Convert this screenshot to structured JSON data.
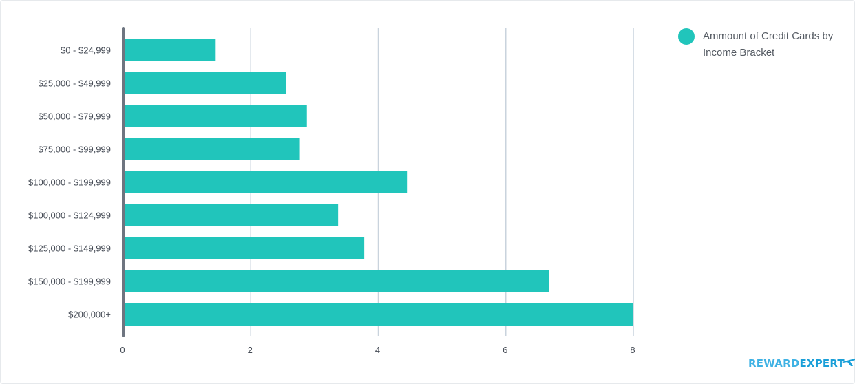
{
  "chart_data": {
    "type": "bar",
    "orientation": "horizontal",
    "categories": [
      "$0 - $24,999",
      "$25,000 - $49,999",
      "$50,000 - $79,999",
      "$75,000 - $99,999",
      "$100,000 - $199,999",
      "$100,000 - $124,999",
      "$125,000 - $149,999",
      "$150,000 - $199,999",
      "$200,000+"
    ],
    "series": [
      {
        "name": "Ammount of Credit Cards by Income Bracket",
        "values": [
          1.45,
          2.55,
          2.88,
          2.77,
          4.45,
          3.37,
          3.78,
          6.68,
          8.0
        ]
      }
    ],
    "xlim": [
      0,
      8
    ],
    "xticks": [
      "0",
      "2",
      "4",
      "6",
      "8"
    ],
    "grid": "vertical",
    "legend_position": "top-right"
  },
  "legend": {
    "label": "Ammount of Credit Cards by Income Bracket"
  },
  "colors": {
    "bar": "#21c5bb",
    "grid": "#c9d3dd",
    "axis": "#6e7580"
  },
  "brand": {
    "part1": "REWARD",
    "part2": "EXPERT",
    "icon": "airplane-icon"
  }
}
